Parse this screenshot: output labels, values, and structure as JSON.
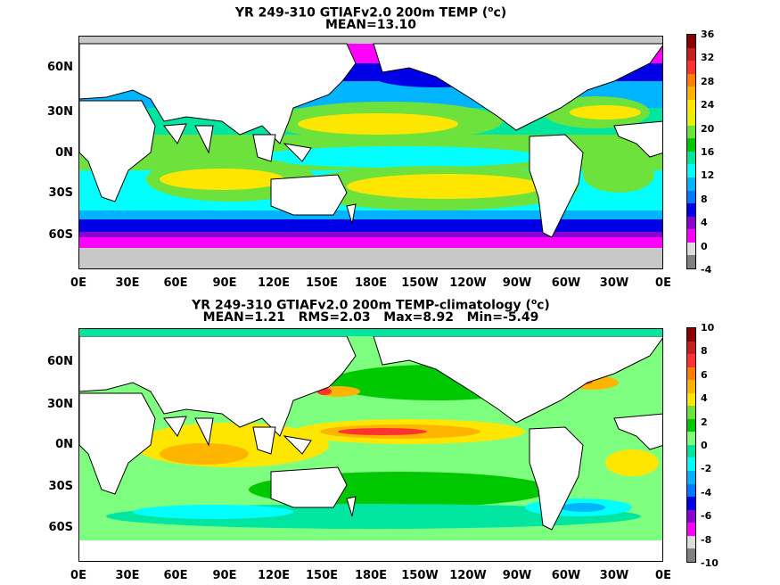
{
  "panels": [
    {
      "title_line1": "YR 249-310 GTIAFv2.0 200m TEMP (",
      "title_unit_sup": "o",
      "title_unit_tail": "c)",
      "title_line2": "MEAN=13.10",
      "colorbar_labels": [
        "36",
        "32",
        "28",
        "24",
        "20",
        "16",
        "12",
        "8",
        "4",
        "0",
        "-4"
      ],
      "colorbar_colors": [
        "#8b0000",
        "#c81e1e",
        "#ff3232",
        "#ff7f00",
        "#ffb400",
        "#ffe600",
        "#e6f000",
        "#6ee23c",
        "#00c800",
        "#00e6a0",
        "#00ffff",
        "#00b4ff",
        "#0078ff",
        "#0000e6",
        "#8c00d2",
        "#ff00ff",
        "#dcdcdc",
        "#808080"
      ]
    },
    {
      "title_line1": "YR 249-310 GTIAFv2.0 200m TEMP-climatology (",
      "title_unit_sup": "o",
      "title_unit_tail": "c)",
      "title_line2": "MEAN=1.21   RMS=2.03   Max=8.92   Min=-5.49",
      "colorbar_labels": [
        "10",
        "8",
        "6",
        "4",
        "2",
        "0",
        "-2",
        "-4",
        "-6",
        "-8",
        "-10"
      ],
      "colorbar_colors": [
        "#8b0000",
        "#c81e1e",
        "#ff3232",
        "#ff7f00",
        "#ffb400",
        "#ffe600",
        "#6ee23c",
        "#00c800",
        "#7fff7f",
        "#00e6a0",
        "#00ffff",
        "#00b4ff",
        "#0078ff",
        "#0000e6",
        "#8c00d2",
        "#ff00ff",
        "#dcdcdc",
        "#808080"
      ]
    }
  ],
  "lat_labels": [
    "60N",
    "30N",
    "0N",
    "30S",
    "60S"
  ],
  "lon_labels": [
    "0E",
    "30E",
    "60E",
    "90E",
    "120E",
    "150E",
    "180E",
    "150W",
    "120W",
    "90W",
    "60W",
    "30W",
    "0E"
  ]
}
